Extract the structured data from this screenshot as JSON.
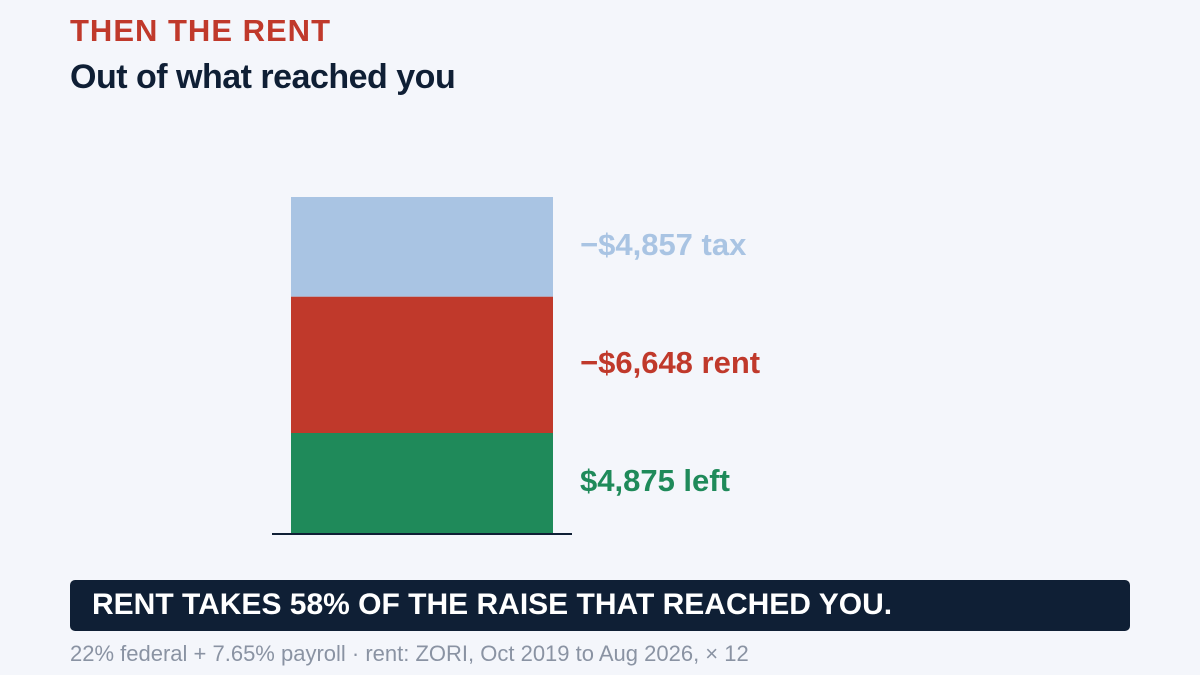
{
  "chart_data": {
    "type": "bar",
    "stacked": true,
    "title": "THEN THE RENT",
    "subtitle": "Out of what reached you",
    "series": [
      {
        "color": "#1f8a5a",
        "values": [
          4875
        ],
        "value_labels": [
          "$4,875 left"
        ]
      },
      {
        "color": "#c0392b",
        "values": [
          6648
        ],
        "value_labels": [
          "−$6,648 rent"
        ]
      },
      {
        "color": "#a9c4e3",
        "values": [
          4857
        ],
        "value_labels": [
          "−$4,857 tax"
        ]
      }
    ],
    "callout": "RENT TAKES 58% OF THE RAISE THAT REACHED YOU.",
    "footnote": "22% federal + 7.65% payroll · rent: ZORI, Oct 2019 to Aug 2026, × 12"
  }
}
